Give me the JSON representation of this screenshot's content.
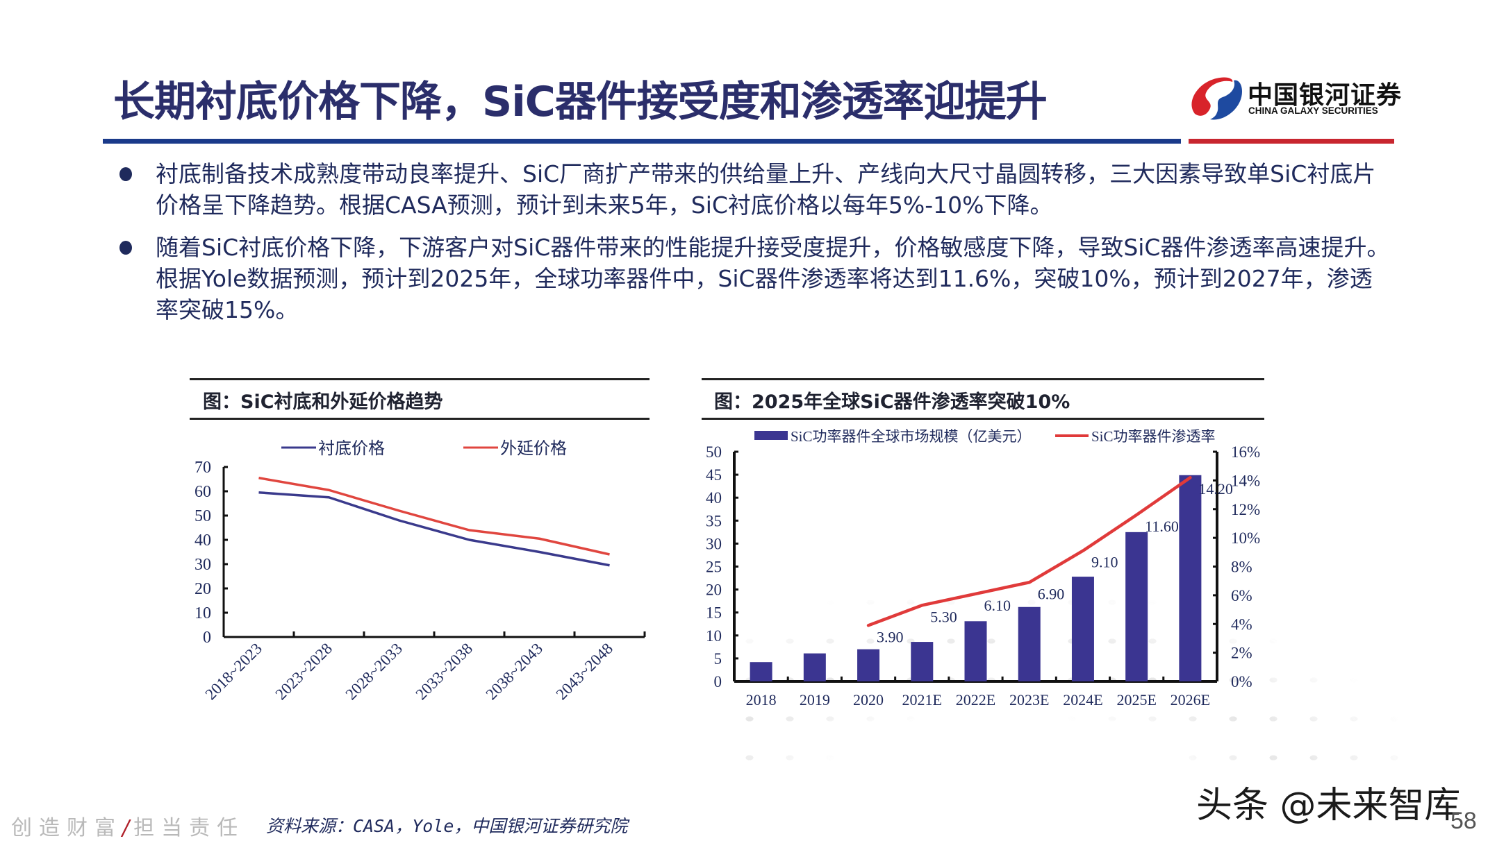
{
  "header": {
    "title": "长期衬底价格下降，SiC器件接受度和渗透率迎提升",
    "logo": {
      "cn": "中国银河证券",
      "en": "CHINA GALAXY SECURITIES",
      "icon": "galaxy-logo-icon"
    },
    "colors": {
      "title": "#2b2e6b",
      "rule_blue": "#1a3a8a",
      "rule_red": "#c8262f"
    }
  },
  "bullets": [
    {
      "text": "衬底制备技术成熟度带动良率提升、SiC厂商扩产带来的供给量上升、产线向大尺寸晶圆转移，三大因素导致单SiC衬底片价格呈下降趋势。根据CASA预测，预计到未来5年，SiC衬底价格以每年5%-10%下降。"
    },
    {
      "text": "随着SiC衬底价格下降，下游客户对SiC器件带来的性能提升接受度提升，价格敏感度下降，导致SiC器件渗透率高速提升。根据Yole数据预测，预计到2025年，全球功率器件中，SiC器件渗透率将达到11.6%，突破10%，预计到2027年，渗透率突破15%。"
    }
  ],
  "chart_data": [
    {
      "type": "line",
      "title": "图：SiC衬底和外延价格趋势",
      "categories": [
        "2018~2023",
        "2023~2028",
        "2028~2033",
        "2033~2038",
        "2038~2043",
        "2043~2048"
      ],
      "series": [
        {
          "name": "衬底价格",
          "color": "#3a3a8c",
          "values": [
            59.5,
            57.5,
            48,
            40,
            35,
            29.5
          ]
        },
        {
          "name": "外延价格",
          "color": "#e0463f",
          "values": [
            65.5,
            60.5,
            52,
            44,
            40.5,
            34
          ]
        }
      ],
      "xlabel": "",
      "ylabel": "",
      "ylim": [
        0,
        70
      ],
      "yticks": [
        0,
        10,
        20,
        30,
        40,
        50,
        60,
        70
      ],
      "legend": "top",
      "grid": false
    },
    {
      "type": "bar",
      "title": "图：2025年全球SiC器件渗透率突破10%",
      "categories": [
        "2018",
        "2019",
        "2020",
        "2021E",
        "2022E",
        "2023E",
        "2024E",
        "2025E",
        "2026E"
      ],
      "series": [
        {
          "name": "SiC功率器件全球市场规模（亿美元）",
          "type": "bar",
          "axis": "left",
          "color": "#3b3591",
          "values": [
            4.2,
            6.1,
            7.0,
            8.6,
            13.1,
            16.2,
            22.8,
            32.5,
            44.9
          ]
        },
        {
          "name": "SiC功率器件渗透率",
          "type": "line",
          "axis": "right",
          "color": "#e03a3a",
          "values": [
            null,
            null,
            3.9,
            5.3,
            6.1,
            6.9,
            9.1,
            11.6,
            14.2
          ],
          "labels": [
            null,
            null,
            "3.90",
            "5.30",
            "6.10",
            "6.90",
            "9.10",
            "11.60",
            "14.20"
          ]
        }
      ],
      "ylim_left": [
        0,
        50
      ],
      "yticks_left": [
        0,
        5,
        10,
        15,
        20,
        25,
        30,
        35,
        40,
        45,
        50
      ],
      "ylim_right": [
        0,
        16
      ],
      "yticks_right": [
        "0%",
        "2%",
        "4%",
        "6%",
        "8%",
        "10%",
        "12%",
        "14%",
        "16%"
      ],
      "legend": "top",
      "grid": false
    }
  ],
  "footer": {
    "slogan_left": "创造财富",
    "slogan_sep": "/",
    "slogan_right": "担当责任",
    "source": "资料来源：CASA，Yole，中国银河证券研究院",
    "watermark": "头条 @未来智库",
    "page_number": "58"
  }
}
